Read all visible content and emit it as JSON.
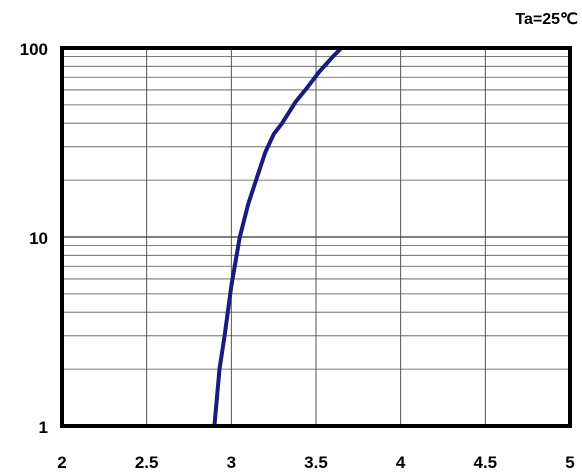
{
  "chart_data": {
    "type": "line",
    "title": "",
    "xlabel": "",
    "ylabel": "",
    "annotation": "Ta=25℃",
    "x_scale": "linear",
    "y_scale": "log",
    "xlim": [
      2,
      5
    ],
    "ylim": [
      1,
      100
    ],
    "x_ticks": [
      "2",
      "2.5",
      "3",
      "3.5",
      "4",
      "4.5",
      "5"
    ],
    "y_ticks": [
      "1",
      "10",
      "100"
    ],
    "grid": true,
    "line_color": "#1a1a80",
    "series": [
      {
        "x": [
          2.9,
          2.93,
          2.96,
          3.0,
          3.05,
          3.1,
          3.2,
          3.25,
          3.3,
          3.38,
          3.45,
          3.52,
          3.6,
          3.65
        ],
        "y": [
          1,
          2,
          3,
          5.5,
          10,
          15,
          28,
          35,
          40,
          52,
          62,
          75,
          90,
          100
        ]
      }
    ]
  }
}
